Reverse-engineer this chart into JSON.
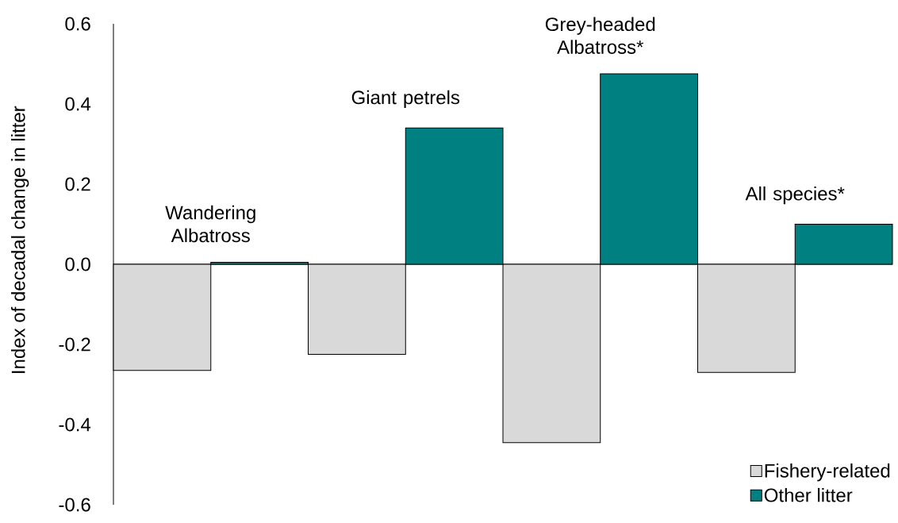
{
  "chart_data": {
    "type": "bar",
    "ylabel": "Index of decadal change in litter",
    "categories": [
      "Wandering Albatross",
      "Giant petrels",
      "Grey-headed Albatross*",
      "All species*"
    ],
    "series": [
      {
        "name": "Fishery-related",
        "color": "#d9d9d9",
        "values": [
          -0.265,
          -0.225,
          -0.445,
          -0.27
        ]
      },
      {
        "name": "Other litter",
        "color": "#008080",
        "values": [
          0.005,
          0.34,
          0.475,
          0.1
        ]
      }
    ],
    "ylim": [
      -0.6,
      0.6
    ],
    "yticks": [
      -0.6,
      -0.4,
      -0.2,
      {
        "value": 0,
        "label": "0.0"
      },
      0.2,
      0.4,
      0.6
    ],
    "legend": "bottom right"
  }
}
